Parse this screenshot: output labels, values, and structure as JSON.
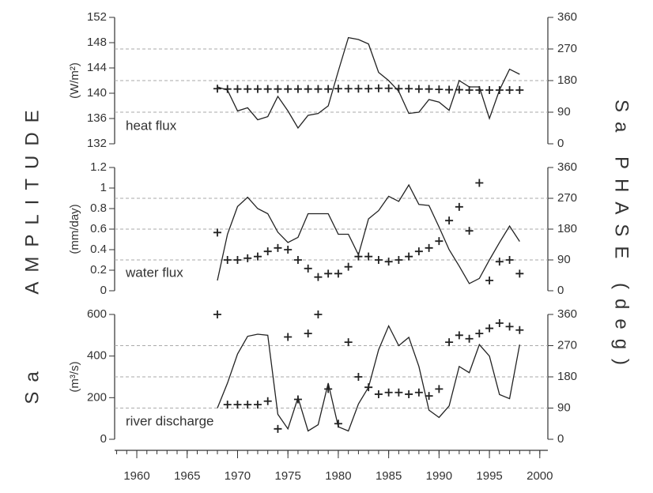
{
  "left_label": "AMPLITUDE",
  "left_label_2": "Sa",
  "right_label": "Sa PHASE (deg)",
  "chart_data": [
    {
      "type": "line",
      "panel_label": "heat flux",
      "ylabel": "(W/m²)",
      "x": [
        1968,
        1969,
        1970,
        1971,
        1972,
        1973,
        1974,
        1975,
        1976,
        1977,
        1978,
        1979,
        1980,
        1981,
        1982,
        1983,
        1984,
        1985,
        1986,
        1987,
        1988,
        1989,
        1990,
        1991,
        1992,
        1993,
        1994,
        1995,
        1996,
        1997,
        1998
      ],
      "xlim": [
        1957.8,
        2000.8
      ],
      "ylim": [
        132,
        152
      ],
      "yticks": [
        132,
        136,
        140,
        144,
        148,
        152
      ],
      "y2lim": [
        0,
        360
      ],
      "y2ticks": [
        0,
        90,
        180,
        270,
        360
      ],
      "grid": true,
      "series": [
        {
          "color": "#222222",
          "values": [
            141,
            140.5,
            137.2,
            137.7,
            135.8,
            136.3,
            139.5,
            137.2,
            134.5,
            136.5,
            136.8,
            138,
            143.5,
            148.8,
            148.5,
            147.8,
            143.3,
            142,
            140.3,
            136.8,
            137,
            139,
            138.6,
            137.3,
            142,
            141,
            141,
            136,
            140.5,
            143.8,
            143
          ]
        },
        {
          "color": "#222222",
          "marker": "plus",
          "axis": "y2",
          "values": [
            157,
            156,
            156,
            156,
            156,
            156,
            156,
            156,
            156,
            156,
            156,
            156,
            157,
            157,
            157,
            157,
            158,
            158,
            157,
            157,
            156,
            156,
            155,
            154,
            154,
            153,
            153,
            153,
            153,
            153,
            153
          ]
        }
      ]
    },
    {
      "type": "line",
      "panel_label": "water flux",
      "ylabel": "(mm/day)",
      "x": [
        1968,
        1969,
        1970,
        1971,
        1972,
        1973,
        1974,
        1975,
        1976,
        1977,
        1978,
        1979,
        1980,
        1981,
        1982,
        1983,
        1984,
        1985,
        1986,
        1987,
        1988,
        1989,
        1990,
        1991,
        1992,
        1993,
        1994,
        1995,
        1996,
        1997,
        1998
      ],
      "xlim": [
        1957.8,
        2000.8
      ],
      "ylim": [
        0,
        1.2
      ],
      "yticks": [
        0,
        0.2,
        0.4,
        0.6,
        0.8,
        1,
        1.2
      ],
      "y2lim": [
        0,
        360
      ],
      "y2ticks": [
        0,
        90,
        180,
        270,
        360
      ],
      "grid": true,
      "series": [
        {
          "color": "#222222",
          "values": [
            0.1,
            0.55,
            0.82,
            0.91,
            0.8,
            0.75,
            0.57,
            0.47,
            0.52,
            0.75,
            0.75,
            0.75,
            0.55,
            0.55,
            0.35,
            0.7,
            0.78,
            0.92,
            0.87,
            1.03,
            0.84,
            0.83,
            0.62,
            0.4,
            0.24,
            0.07,
            0.12,
            0.3,
            0.47,
            0.63,
            0.48
          ]
        },
        {
          "color": "#222222",
          "marker": "plus",
          "axis": "y2",
          "values": [
            170,
            90,
            90,
            95,
            100,
            115,
            125,
            120,
            90,
            65,
            40,
            50,
            50,
            70,
            100,
            100,
            90,
            85,
            90,
            100,
            115,
            125,
            145,
            205,
            245,
            175,
            315,
            30,
            85,
            90,
            50
          ]
        }
      ]
    },
    {
      "type": "line",
      "panel_label": "river discharge",
      "ylabel": "(m³/s)",
      "x": [
        1968,
        1969,
        1970,
        1971,
        1972,
        1973,
        1974,
        1975,
        1976,
        1977,
        1978,
        1979,
        1980,
        1981,
        1982,
        1983,
        1984,
        1985,
        1986,
        1987,
        1988,
        1989,
        1990,
        1991,
        1992,
        1993,
        1994,
        1995,
        1996,
        1997,
        1998
      ],
      "xlim": [
        1957.8,
        2000.8
      ],
      "xticks": [
        1960,
        1965,
        1970,
        1975,
        1980,
        1985,
        1990,
        1995,
        2000
      ],
      "ylim": [
        0,
        600
      ],
      "yticks": [
        0,
        200,
        400,
        600
      ],
      "y2lim": [
        0,
        360
      ],
      "y2ticks": [
        0,
        90,
        180,
        270,
        360
      ],
      "grid": true,
      "series": [
        {
          "color": "#222222",
          "values": [
            150,
            270,
            410,
            495,
            505,
            500,
            120,
            50,
            200,
            40,
            70,
            270,
            60,
            40,
            170,
            250,
            430,
            545,
            450,
            490,
            350,
            140,
            105,
            160,
            350,
            320,
            455,
            400,
            215,
            195,
            455
          ]
        },
        {
          "color": "#222222",
          "marker": "plus",
          "axis": "y2",
          "values": [
            360,
            100,
            100,
            100,
            100,
            110,
            30,
            295,
            115,
            305,
            360,
            145,
            45,
            280,
            180,
            150,
            130,
            135,
            135,
            130,
            135,
            125,
            145,
            280,
            300,
            290,
            305,
            320,
            335,
            325,
            315
          ]
        }
      ]
    }
  ]
}
